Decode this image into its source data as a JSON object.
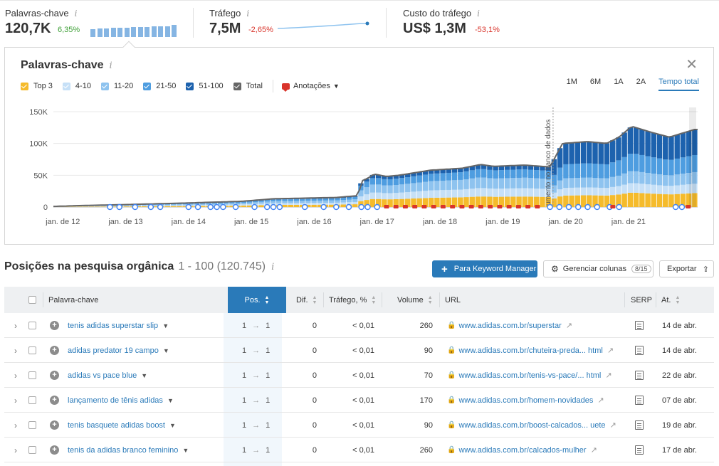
{
  "metrics": [
    {
      "label": "Palavras-chave",
      "info": "i",
      "value": "120,7K",
      "change": "6,35%",
      "change_color": "#3d9f36"
    },
    {
      "label": "Tráfego",
      "info": "i",
      "value": "7,5M",
      "change": "-2,65%",
      "change_color": "#d9342b"
    },
    {
      "label": "Custo do tráfego",
      "info": "i",
      "value": "US$ 1,3M",
      "change": "-53,1%",
      "change_color": "#d9342b"
    }
  ],
  "panel": {
    "title": "Palavras-chave",
    "info": "i",
    "close": "✕",
    "legend": [
      {
        "label": "Top 3",
        "color": "#f5bb2c"
      },
      {
        "label": "4-10",
        "color": "#c6e0f7"
      },
      {
        "label": "11-20",
        "color": "#8ec3ef"
      },
      {
        "label": "21-50",
        "color": "#4e9de0"
      },
      {
        "label": "51-100",
        "color": "#1d62ae"
      },
      {
        "label": "Total",
        "color": "#666666"
      }
    ],
    "annotations_label": "Anotações",
    "periods": [
      "1M",
      "6M",
      "1A",
      "2A",
      "Tempo total"
    ],
    "active_period": "Tempo total",
    "db_annotation": "umento no banco de dados"
  },
  "chart_data": {
    "type": "area",
    "stacked": true,
    "ylim": [
      0,
      150000
    ],
    "yticks": [
      "150K",
      "100K",
      "50K",
      "0"
    ],
    "xticks": [
      "jan. de 12",
      "jan. de 13",
      "jan. de 14",
      "jan. de 15",
      "jan. de 16",
      "jan. de 17",
      "jan. de 18",
      "jan. de 19",
      "jan. de 20",
      "jan. de 21"
    ],
    "xlabel": "",
    "ylabel": "",
    "grid": true,
    "series_order": [
      "Top 3",
      "4-10",
      "11-20",
      "21-50",
      "51-100"
    ],
    "points": [
      {
        "t": 0,
        "total": 1000
      },
      {
        "t": 0.5,
        "total": 2500
      },
      {
        "t": 1,
        "total": 3500
      },
      {
        "t": 2,
        "total": 6000
      },
      {
        "t": 3,
        "total": 9000
      },
      {
        "t": 3.5,
        "total": 13000
      },
      {
        "t": 4,
        "total": 14000
      },
      {
        "t": 4.5,
        "total": 15000
      },
      {
        "t": 4.85,
        "total": 18000
      },
      {
        "t": 4.9,
        "total": 41000
      },
      {
        "t": 5,
        "total": 45000
      },
      {
        "t": 5.1,
        "total": 52000
      },
      {
        "t": 5.3,
        "total": 48000
      },
      {
        "t": 5.5,
        "total": 50000
      },
      {
        "t": 6,
        "total": 58000
      },
      {
        "t": 6.5,
        "total": 61000
      },
      {
        "t": 6.8,
        "total": 67000
      },
      {
        "t": 7,
        "total": 64000
      },
      {
        "t": 7.5,
        "total": 66000
      },
      {
        "t": 7.9,
        "total": 63000
      },
      {
        "t": 8.1,
        "total": 100000
      },
      {
        "t": 8.5,
        "total": 103000
      },
      {
        "t": 8.8,
        "total": 100000
      },
      {
        "t": 9,
        "total": 110000
      },
      {
        "t": 9.2,
        "total": 127000
      },
      {
        "t": 9.5,
        "total": 118000
      },
      {
        "t": 9.8,
        "total": 110000
      },
      {
        "t": 10.2,
        "total": 122000
      }
    ],
    "share_before": {
      "Top 3": 0.25,
      "4-10": 0.2,
      "11-20": 0.25,
      "21-50": 0.2,
      "51-100": 0.1
    },
    "share_after": {
      "Top 3": 0.18,
      "4-10": 0.12,
      "11-20": 0.15,
      "21-50": 0.22,
      "51-100": 0.33
    },
    "db_change_t": 7.95
  },
  "organic": {
    "title": "Posições na pesquisa orgânica",
    "range": "1 - 100 (120.745)",
    "info": "i",
    "btn_keyword_manager": "Para Keyword Manager",
    "btn_columns": "Gerenciar colunas",
    "columns_count": "8/15",
    "btn_export": "Exportar"
  },
  "table": {
    "headers": {
      "keyword": "Palavra-chave",
      "pos": "Pos.",
      "dif": "Dif.",
      "traffic": "Tráfego, %",
      "volume": "Volume",
      "url": "URL",
      "serp": "SERP",
      "updated": "At."
    },
    "rows": [
      {
        "keyword": "tenis adidas superstar slip",
        "pos_from": "1",
        "pos_to": "1",
        "dif": "0",
        "traffic": "< 0,01",
        "volume": "260",
        "url": "www.adidas.com.br/superstar",
        "updated": "14 de abr."
      },
      {
        "keyword": "adidas predator 19 campo",
        "pos_from": "1",
        "pos_to": "1",
        "dif": "0",
        "traffic": "< 0,01",
        "volume": "90",
        "url": "www.adidas.com.br/chuteira-preda... html",
        "updated": "14 de abr."
      },
      {
        "keyword": "adidas vs pace blue",
        "pos_from": "1",
        "pos_to": "1",
        "dif": "0",
        "traffic": "< 0,01",
        "volume": "70",
        "url": "www.adidas.com.br/tenis-vs-pace/... html",
        "updated": "22 de abr."
      },
      {
        "keyword": "lançamento de tênis adidas",
        "pos_from": "1",
        "pos_to": "1",
        "dif": "0",
        "traffic": "< 0,01",
        "volume": "170",
        "url": "www.adidas.com.br/homem-novidades",
        "updated": "07 de abr."
      },
      {
        "keyword": "tenis basquete adidas boost",
        "pos_from": "1",
        "pos_to": "1",
        "dif": "0",
        "traffic": "< 0,01",
        "volume": "90",
        "url": "www.adidas.com.br/boost-calcados... uete",
        "updated": "19 de abr."
      },
      {
        "keyword": "tenis da adidas branco feminino",
        "pos_from": "1",
        "pos_to": "1",
        "dif": "0",
        "traffic": "< 0,01",
        "volume": "260",
        "url": "www.adidas.com.br/calcados-mulher",
        "updated": "17 de abr."
      }
    ]
  }
}
